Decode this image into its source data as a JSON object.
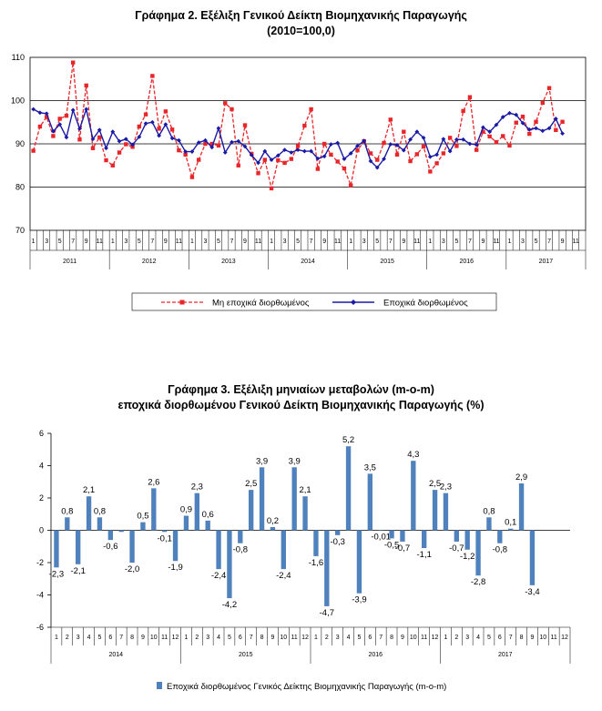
{
  "chart_data": [
    {
      "type": "line",
      "title": "Γράφημα 2. Εξέλιξη Γενικού Δείκτη Βιομηχανικής Παραγωγής",
      "subtitle": "(2010=100,0)",
      "ylim": [
        70,
        110
      ],
      "yticks": [
        "70",
        "80",
        "90",
        "100",
        "110"
      ],
      "grid": true,
      "legend_position": "bottom",
      "month_ticks": [
        "1",
        "3",
        "5",
        "7",
        "9",
        "11"
      ],
      "years": [
        "2011",
        "2012",
        "2013",
        "2014",
        "2015",
        "2016",
        "2017"
      ],
      "series": [
        {
          "name": "Μη εποχικά διορθωμένος",
          "color": "#e8262a",
          "style": "dashed-square",
          "values": [
            88.4,
            94.0,
            96.2,
            91.8,
            95.8,
            96.5,
            108.8,
            91.0,
            103.5,
            89.0,
            91.5,
            86.2,
            85.0,
            88.0,
            89.9,
            89.3,
            94.0,
            96.8,
            105.7,
            93.5,
            97.5,
            93.3,
            88.5,
            87.5,
            82.3,
            86.3,
            90.0,
            90.0,
            89.6,
            99.4,
            98.0,
            85.0,
            94.3,
            87.7,
            83.2,
            86.3,
            79.7,
            86.2,
            85.6,
            86.5,
            89.5,
            94.2,
            98.0,
            84.2,
            90.0,
            87.5,
            85.9,
            84.3,
            80.4,
            88.5,
            90.6,
            87.8,
            86.3,
            90.2,
            95.6,
            87.5,
            92.8,
            86.0,
            87.6,
            89.4,
            83.6,
            85.5,
            87.8,
            91.4,
            89.5,
            97.6,
            100.8,
            88.6,
            92.8,
            91.7,
            90.4,
            91.8,
            89.6,
            94.9,
            96.3,
            92.3,
            95.1,
            99.5,
            102.9,
            93.2,
            95.1
          ]
        },
        {
          "name": "Εποχικά διορθωμένος",
          "color": "#1a1aa6",
          "style": "solid-diamond",
          "values": [
            98.0,
            97.2,
            97.0,
            92.9,
            94.5,
            91.5,
            97.8,
            93.5,
            98.0,
            91.1,
            93.2,
            89.0,
            92.8,
            90.6,
            91.1,
            89.8,
            91.6,
            94.7,
            95.0,
            91.9,
            94.5,
            91.3,
            90.8,
            88.2,
            88.2,
            90.3,
            90.8,
            89.2,
            93.6,
            88.0,
            90.4,
            90.6,
            89.4,
            87.4,
            85.6,
            88.3,
            86.3,
            87.3,
            88.6,
            88.0,
            88.6,
            88.3,
            88.3,
            86.6,
            87.1,
            89.9,
            90.2,
            86.5,
            87.8,
            89.5,
            90.7,
            86.0,
            84.5,
            86.5,
            89.9,
            89.7,
            88.5,
            91.0,
            92.8,
            91.4,
            87.0,
            87.5,
            91.1,
            88.3,
            91.0,
            91.0,
            90.0,
            89.8,
            93.8,
            92.8,
            94.4,
            96.2,
            97.1,
            96.7,
            94.8,
            93.3,
            93.6,
            93.0,
            93.6,
            95.8,
            92.4
          ]
        }
      ]
    },
    {
      "type": "bar",
      "title": "Γράφημα 3. Εξέλιξη μηνιαίων μεταβολών (m-o-m)",
      "subtitle": "εποχικά διορθωμένου Γενικού Δείκτη Βιομηχανικής Παραγωγής (%)",
      "ylim": [
        -6,
        6
      ],
      "yticks": [
        "-6",
        "-4",
        "-2",
        "0",
        "2",
        "4",
        "6"
      ],
      "grid": false,
      "legend_position": "bottom",
      "month_ticks": [
        "1",
        "2",
        "3",
        "4",
        "5",
        "6",
        "7",
        "8",
        "9",
        "10",
        "11",
        "12"
      ],
      "years": [
        "2014",
        "2015",
        "2016",
        "2017"
      ],
      "series": [
        {
          "name": "Εποχικά διορθωμένος Γενικός Δείκτης Βιομηχανικής Παραγωγής (m-o-m)",
          "color": "#4f81bd",
          "values": [
            -2.3,
            0.8,
            -2.1,
            2.1,
            0.8,
            -0.6,
            -0.1,
            -2.0,
            0.5,
            2.6,
            -0.1,
            -1.9,
            0.9,
            2.3,
            0.6,
            -2.4,
            -4.2,
            -0.8,
            2.5,
            3.9,
            0.2,
            -2.4,
            3.9,
            2.1,
            -1.6,
            -4.7,
            -0.3,
            5.2,
            -3.9,
            3.5,
            -0.01,
            -0.5,
            -0.7,
            4.3,
            -1.1,
            2.5,
            2.3,
            -0.7,
            -1.2,
            -2.8,
            0.8,
            -0.8,
            0.1,
            2.9,
            -3.4
          ],
          "data_labels": [
            "-2,3",
            "0,8",
            "-2,1",
            "2,1",
            "0,8",
            "-0,6",
            "",
            "-2,0",
            "0,5",
            "2,6",
            "-0,1",
            "-1,9",
            "0,9",
            "2,3",
            "0,6",
            "-2,4",
            "-4,2",
            "-0,8",
            "2,5",
            "3,9",
            "0,2",
            "-2,4",
            "3,9",
            "2,1",
            "-1,6",
            "-4,7",
            "-0,3",
            "5,2",
            "-3,9",
            "3,5",
            "-0,01",
            "-0,5",
            "-0,7",
            "4,3",
            "-1,1",
            "2,5",
            "2,3",
            "-0,7",
            "-1,2",
            "-2,8",
            "0,8",
            "-0,8",
            "0,1",
            "2,9",
            "-3,4"
          ]
        }
      ]
    }
  ]
}
